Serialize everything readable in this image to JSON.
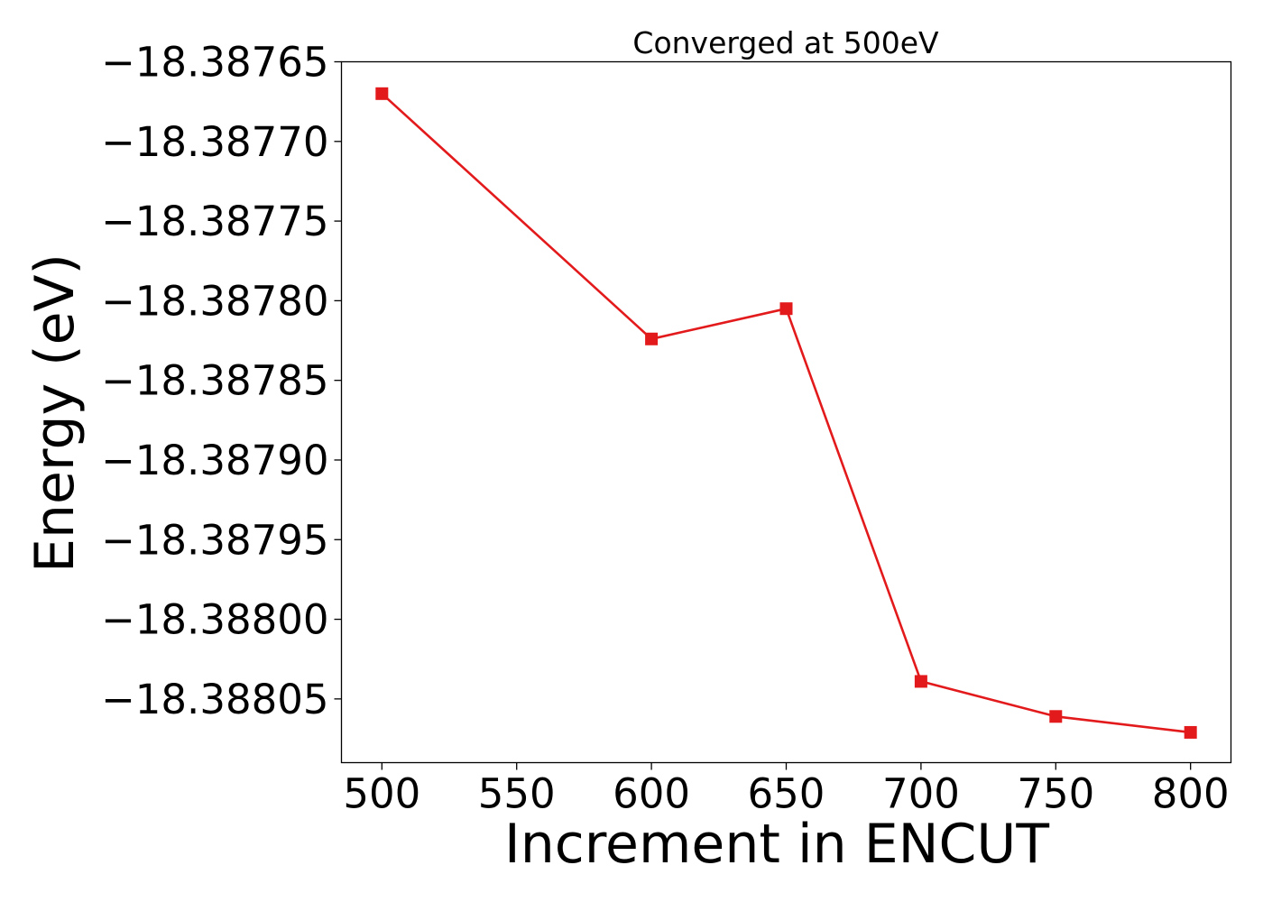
{
  "chart_data": {
    "type": "line",
    "title": "Converged at 500eV",
    "xlabel": "Increment in ENCUT",
    "ylabel": "Energy (eV)",
    "x": [
      500,
      600,
      650,
      700,
      750,
      800
    ],
    "series": [
      {
        "values": [
          -18.38767,
          -18.387824,
          -18.387805,
          -18.388039,
          -18.388061,
          -18.388071
        ],
        "color": "#e31a1c",
        "marker": "square"
      }
    ],
    "x_ticks": [
      500,
      550,
      600,
      650,
      700,
      750,
      800
    ],
    "x_tick_labels": [
      "500",
      "550",
      "600",
      "650",
      "700",
      "750",
      "800"
    ],
    "y_ticks": [
      -18.38765,
      -18.3877,
      -18.38775,
      -18.3878,
      -18.38785,
      -18.3879,
      -18.38795,
      -18.388,
      -18.38805
    ],
    "y_tick_labels": [
      "−18.38765",
      "−18.38770",
      "−18.38775",
      "−18.38780",
      "−18.38785",
      "−18.38790",
      "−18.38795",
      "−18.38800",
      "−18.38805"
    ],
    "xlim": [
      485,
      815
    ],
    "ylim": [
      -18.38809,
      -18.38765
    ],
    "grid": false,
    "legend": "none"
  }
}
